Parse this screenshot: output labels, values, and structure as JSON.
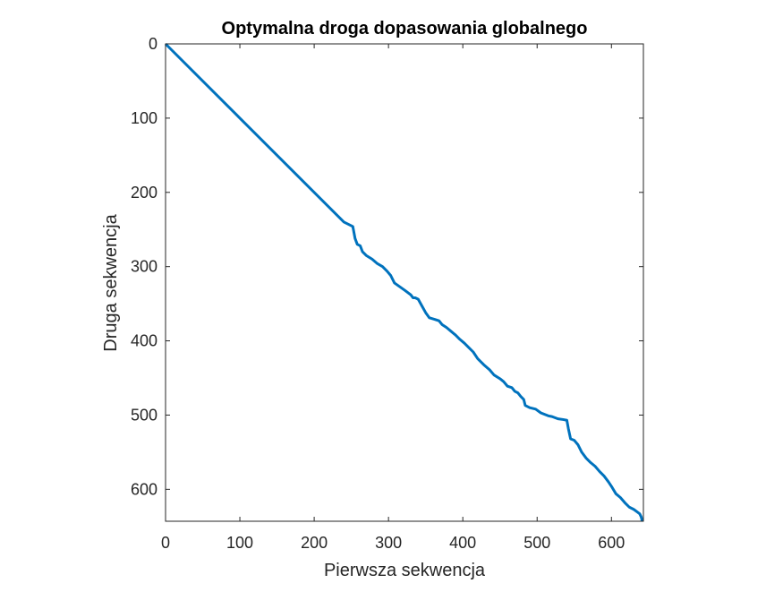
{
  "chart_data": {
    "type": "line",
    "title": "Optymalna droga dopasowania globalnego",
    "xlabel": "Pierwsza sekwencja",
    "ylabel": "Druga sekwencja",
    "xlim": [
      0,
      643
    ],
    "ylim": [
      0,
      643
    ],
    "y_reversed": true,
    "grid": false,
    "xticks": [
      0,
      100,
      200,
      300,
      400,
      500,
      600
    ],
    "yticks": [
      0,
      100,
      200,
      300,
      400,
      500,
      600
    ],
    "series": [
      {
        "color": "#0072bd",
        "x": [
          0,
          100,
          200,
          240,
          250,
          252,
          255,
          258,
          262,
          265,
          270,
          278,
          285,
          292,
          298,
          303,
          308,
          315,
          322,
          330,
          333,
          336,
          340,
          345,
          350,
          355,
          362,
          368,
          372,
          378,
          384,
          390,
          396,
          402,
          408,
          414,
          420,
          428,
          436,
          442,
          450,
          455,
          460,
          466,
          470,
          474,
          478,
          482,
          484,
          490,
          498,
          505,
          515,
          520,
          528,
          535,
          540,
          542,
          545,
          550,
          555,
          560,
          566,
          572,
          578,
          584,
          590,
          596,
          600,
          606,
          612,
          618,
          624,
          630,
          634,
          638,
          640,
          641,
          641
        ],
        "y": [
          0,
          100,
          200,
          240,
          245,
          246,
          262,
          270,
          272,
          280,
          285,
          290,
          296,
          300,
          306,
          312,
          322,
          327,
          332,
          338,
          342,
          342,
          344,
          353,
          362,
          369,
          371,
          373,
          378,
          382,
          387,
          392,
          398,
          403,
          409,
          415,
          424,
          432,
          439,
          446,
          451,
          455,
          461,
          463,
          468,
          470,
          475,
          479,
          487,
          490,
          492,
          497,
          501,
          502,
          505,
          506,
          507,
          518,
          532,
          534,
          540,
          550,
          558,
          564,
          569,
          576,
          582,
          590,
          596,
          606,
          611,
          618,
          624,
          627,
          630,
          633,
          637,
          641,
          643
        ]
      }
    ]
  }
}
